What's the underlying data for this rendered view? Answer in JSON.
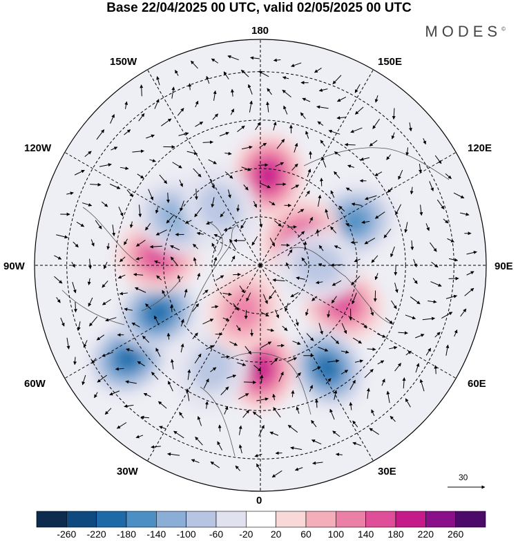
{
  "title": "Base 22/04/2025 00 UTC, valid 02/05/2025 00 UTC",
  "brand": "MODES",
  "brand_mark": "©",
  "longitude_labels": {
    "n180": "180",
    "w150": "150W",
    "e150": "150E",
    "w120": "120W",
    "e120": "120E",
    "w90": "90W",
    "e90": "90E",
    "w60": "60W",
    "e60": "60E",
    "w30": "30W",
    "e30": "30E",
    "zero": "0"
  },
  "reference_vector_label": "30",
  "colorbar": {
    "colors": [
      "#0d2b4e",
      "#0e4a80",
      "#1e6aa8",
      "#4b8fc4",
      "#8aaed6",
      "#b7c5e2",
      "#e1e2ef",
      "#ffffff",
      "#f9d8d8",
      "#f3aebc",
      "#ec7fa6",
      "#de4e99",
      "#c51a8a",
      "#8b0f88",
      "#4c0a6b"
    ],
    "tick_labels": [
      "-260",
      "-220",
      "-180",
      "-140",
      "-100",
      "-60",
      "-20",
      "20",
      "60",
      "100",
      "140",
      "180",
      "220",
      "260"
    ]
  },
  "chart_data": {
    "type": "heatmap",
    "title": "Base 22/04/2025 00 UTC, valid 02/05/2025 00 UTC",
    "projection": "north polar stereographic",
    "colorbar_levels": [
      -260,
      -220,
      -180,
      -140,
      -100,
      -60,
      -20,
      20,
      60,
      100,
      140,
      180,
      220,
      260
    ],
    "anomaly_centers": [
      {
        "lon": 175,
        "lat": 62,
        "sign": "positive",
        "max": 180
      },
      {
        "lon": 115,
        "lat": 58,
        "sign": "negative",
        "min": -140
      },
      {
        "lon": 125,
        "lat": 75,
        "sign": "positive",
        "max": 140
      },
      {
        "lon": 65,
        "lat": 62,
        "sign": "positive",
        "max": 140
      },
      {
        "lon": 33,
        "lat": 52,
        "sign": "negative",
        "min": -180
      },
      {
        "lon": 0,
        "lat": 58,
        "sign": "positive",
        "max": 180
      },
      {
        "lon": -25,
        "lat": 55,
        "sign": "negative",
        "min": -60
      },
      {
        "lon": -55,
        "lat": 40,
        "sign": "negative",
        "min": -180
      },
      {
        "lon": -65,
        "lat": 55,
        "sign": "negative",
        "min": -180
      },
      {
        "lon": -95,
        "lat": 58,
        "sign": "positive",
        "max": 140
      },
      {
        "lon": -120,
        "lat": 60,
        "sign": "negative",
        "min": -100
      },
      {
        "lon": -145,
        "lat": 68,
        "sign": "negative",
        "min": -60
      },
      {
        "lon": -20,
        "lat": 75,
        "sign": "positive",
        "max": 100
      },
      {
        "lon": 90,
        "lat": 72,
        "sign": "negative",
        "min": -60
      }
    ]
  }
}
